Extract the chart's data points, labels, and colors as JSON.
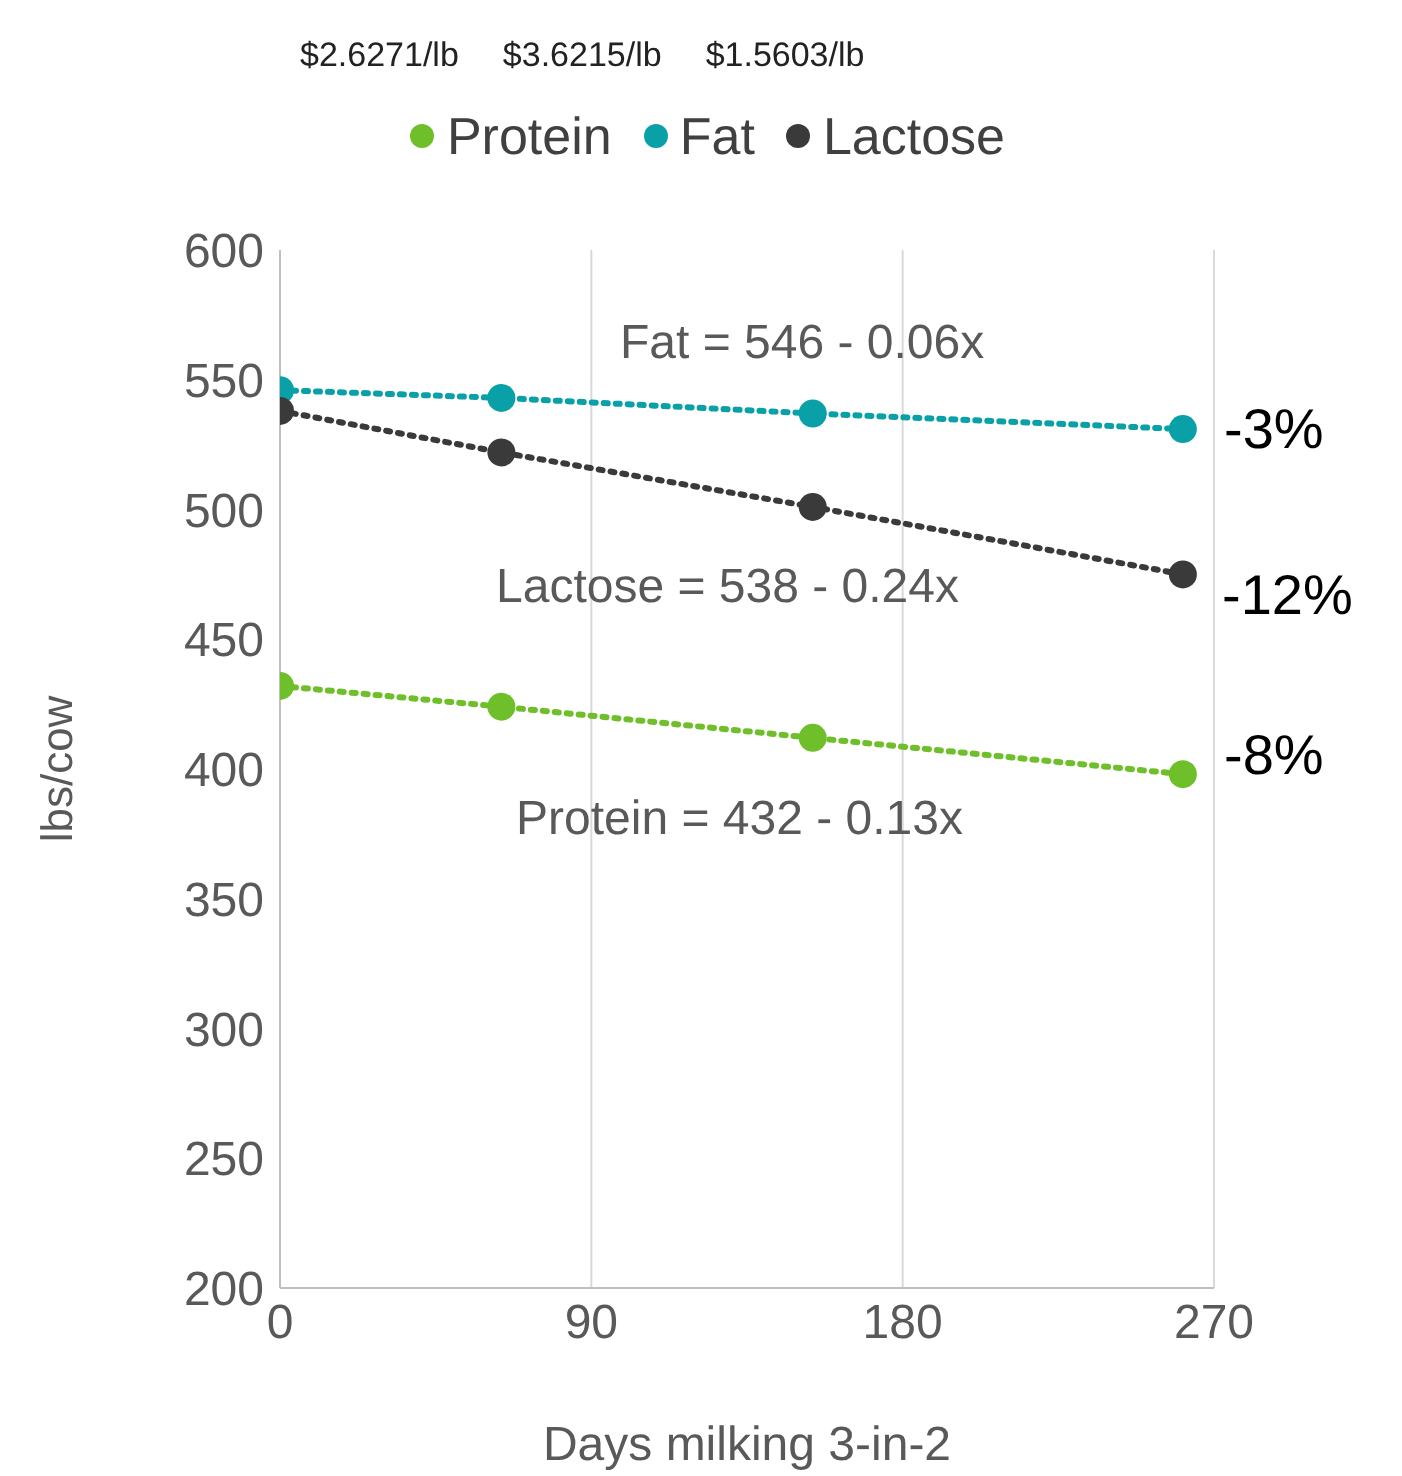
{
  "chart_data": {
    "type": "line",
    "xlabel": "Days milking 3-in-2",
    "ylabel": "lbs/cow",
    "x": [
      0,
      64,
      154,
      261
    ],
    "series": [
      {
        "name": "Protein",
        "color": "#6fbf2a",
        "values": [
          432,
          424,
          412,
          398
        ]
      },
      {
        "name": "Fat",
        "color": "#0aa0a8",
        "values": [
          546,
          543,
          537,
          531
        ]
      },
      {
        "name": "Lactose",
        "color": "#3a3a3a",
        "values": [
          538,
          522,
          501,
          475
        ]
      }
    ],
    "xlim": [
      0,
      270
    ],
    "xticks": [
      0,
      90,
      180,
      270
    ],
    "ylim": [
      200,
      600
    ],
    "yticks": [
      200,
      250,
      300,
      350,
      400,
      450,
      500,
      550,
      600
    ],
    "grid": "x",
    "legend": "top",
    "marker": "circle",
    "line_style": "dotted",
    "annotations": [
      "$2.6271/lb",
      "$3.6215/lb",
      "$1.5603/lb",
      "Fat = 546 - 0.06x",
      "Lactose = 538 - 0.24x",
      "Protein = 432 - 0.13x",
      "-3%",
      "-12%",
      "-8%"
    ]
  }
}
